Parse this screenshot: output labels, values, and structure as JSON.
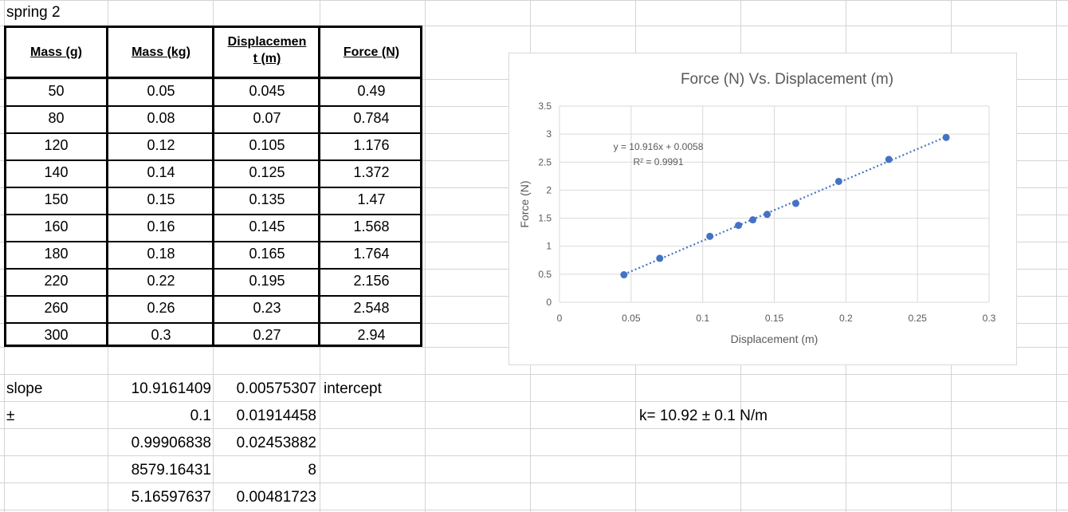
{
  "sheet": {
    "title": "spring 2",
    "headers": [
      "Mass (g)",
      "Mass (kg)",
      "Displacement (m)",
      "Force (N)"
    ],
    "header_lines": {
      "displacement": [
        "Displacemen",
        "t (m)"
      ]
    },
    "rows": [
      [
        "50",
        "0.05",
        "0.045",
        "0.49"
      ],
      [
        "80",
        "0.08",
        "0.07",
        "0.784"
      ],
      [
        "120",
        "0.12",
        "0.105",
        "1.176"
      ],
      [
        "140",
        "0.14",
        "0.125",
        "1.372"
      ],
      [
        "150",
        "0.15",
        "0.135",
        "1.47"
      ],
      [
        "160",
        "0.16",
        "0.145",
        "1.568"
      ],
      [
        "180",
        "0.18",
        "0.165",
        "1.764"
      ],
      [
        "220",
        "0.22",
        "0.195",
        "2.156"
      ],
      [
        "260",
        "0.26",
        "0.23",
        "2.548"
      ],
      [
        "300",
        "0.3",
        "0.27",
        "2.94"
      ]
    ],
    "stats": {
      "slope_label": "slope",
      "pm_label": "±",
      "intercept_label": "intercept",
      "cells": [
        [
          "10.9161409",
          "0.00575307"
        ],
        [
          "0.1",
          "0.01914458"
        ],
        [
          "0.99906838",
          "0.02453882"
        ],
        [
          "8579.16431",
          "8"
        ],
        [
          "5.16597637",
          "0.00481723"
        ]
      ]
    },
    "k_result": "k=  10.92  ±  0.1  N/m"
  },
  "chart_data": {
    "type": "scatter",
    "title": "Force (N) Vs. Displacement (m)",
    "xlabel": "Displacement (m)",
    "ylabel": "Force (N)",
    "xlim": [
      0,
      0.3
    ],
    "ylim": [
      0,
      3.5
    ],
    "xticks": [
      "0",
      "0.05",
      "0.1",
      "0.15",
      "0.2",
      "0.25",
      "0.3"
    ],
    "yticks": [
      "0",
      "0.5",
      "1",
      "1.5",
      "2",
      "2.5",
      "3",
      "3.5"
    ],
    "grid": true,
    "x": [
      0.045,
      0.07,
      0.105,
      0.125,
      0.135,
      0.145,
      0.165,
      0.195,
      0.23,
      0.27
    ],
    "y": [
      0.49,
      0.784,
      1.176,
      1.372,
      1.47,
      1.568,
      1.764,
      2.156,
      2.548,
      2.94
    ],
    "trendline": {
      "slope": 10.916,
      "intercept": 0.0058,
      "equation": "y = 10.916x + 0.0058",
      "r2": "R² = 0.9991"
    },
    "colors": {
      "marker": "#4472c4",
      "trend": "#4472c4",
      "grid": "#d9d9d9",
      "text": "#595959"
    }
  }
}
